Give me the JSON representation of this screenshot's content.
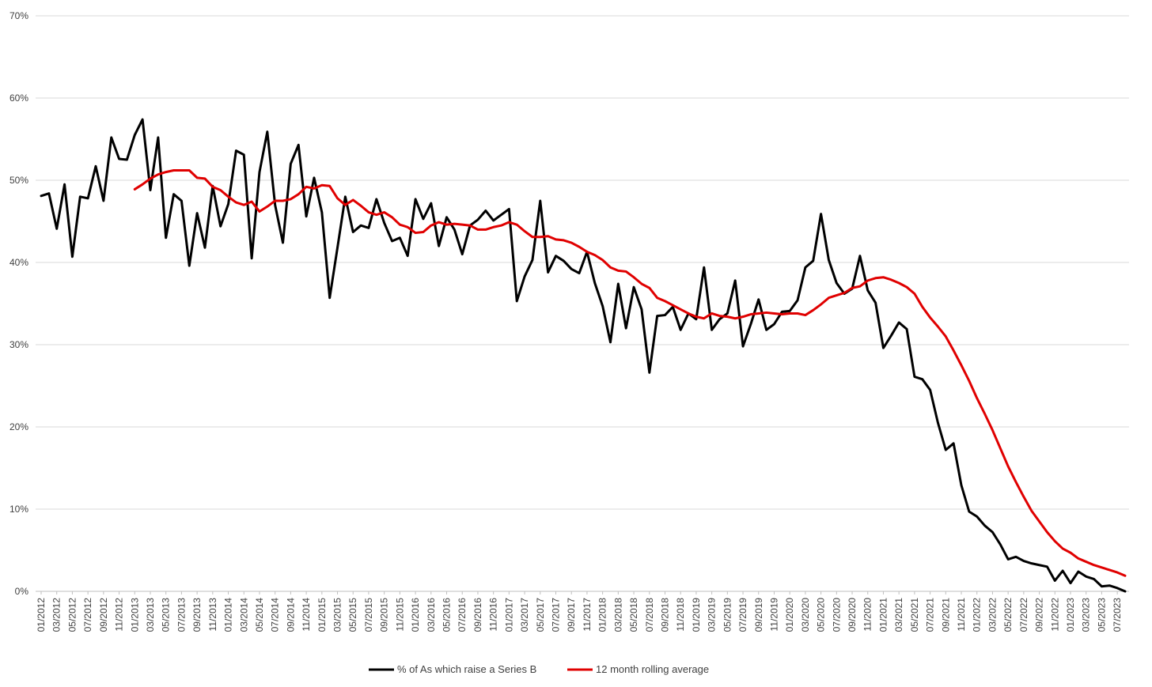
{
  "chart_data": {
    "type": "line",
    "xlabel": "",
    "ylabel": "",
    "ylim": [
      0,
      0.7
    ],
    "y_ticks": [
      "0%",
      "10%",
      "20%",
      "30%",
      "40%",
      "50%",
      "60%",
      "70%"
    ],
    "grid": "horizontal",
    "legend_position": "bottom",
    "x": [
      "01/2012",
      "02/2012",
      "03/2012",
      "04/2012",
      "05/2012",
      "06/2012",
      "07/2012",
      "08/2012",
      "09/2012",
      "10/2012",
      "11/2012",
      "12/2012",
      "01/2013",
      "02/2013",
      "03/2013",
      "04/2013",
      "05/2013",
      "06/2013",
      "07/2013",
      "08/2013",
      "09/2013",
      "10/2013",
      "11/2013",
      "12/2013",
      "01/2014",
      "02/2014",
      "03/2014",
      "04/2014",
      "05/2014",
      "06/2014",
      "07/2014",
      "08/2014",
      "09/2014",
      "10/2014",
      "11/2014",
      "12/2014",
      "01/2015",
      "02/2015",
      "03/2015",
      "04/2015",
      "05/2015",
      "06/2015",
      "07/2015",
      "08/2015",
      "09/2015",
      "10/2015",
      "11/2015",
      "12/2015",
      "01/2016",
      "02/2016",
      "03/2016",
      "04/2016",
      "05/2016",
      "06/2016",
      "07/2016",
      "08/2016",
      "09/2016",
      "10/2016",
      "11/2016",
      "12/2016",
      "01/2017",
      "02/2017",
      "03/2017",
      "04/2017",
      "05/2017",
      "06/2017",
      "07/2017",
      "08/2017",
      "09/2017",
      "10/2017",
      "11/2017",
      "12/2017",
      "01/2018",
      "02/2018",
      "03/2018",
      "04/2018",
      "05/2018",
      "06/2018",
      "07/2018",
      "08/2018",
      "09/2018",
      "10/2018",
      "11/2018",
      "12/2018",
      "01/2019",
      "02/2019",
      "03/2019",
      "04/2019",
      "05/2019",
      "06/2019",
      "07/2019",
      "08/2019",
      "09/2019",
      "10/2019",
      "11/2019",
      "12/2019",
      "01/2020",
      "02/2020",
      "03/2020",
      "04/2020",
      "05/2020",
      "06/2020",
      "07/2020",
      "08/2020",
      "09/2020",
      "10/2020",
      "11/2020",
      "12/2020",
      "01/2021",
      "02/2021",
      "03/2021",
      "04/2021",
      "05/2021",
      "06/2021",
      "07/2021",
      "08/2021",
      "09/2021",
      "10/2021",
      "11/2021",
      "12/2021",
      "01/2022",
      "02/2022",
      "03/2022",
      "04/2022",
      "05/2022",
      "06/2022",
      "07/2022",
      "08/2022",
      "09/2022",
      "10/2022",
      "11/2022",
      "12/2022",
      "01/2023",
      "02/2023",
      "03/2023",
      "04/2023",
      "05/2023",
      "06/2023",
      "07/2023",
      "08/2023"
    ],
    "x_tick_labels": [
      "01/2012",
      "03/2012",
      "05/2012",
      "07/2012",
      "09/2012",
      "11/2012",
      "01/2013",
      "03/2013",
      "05/2013",
      "07/2013",
      "09/2013",
      "11/2013",
      "01/2014",
      "03/2014",
      "05/2014",
      "07/2014",
      "09/2014",
      "11/2014",
      "01/2015",
      "03/2015",
      "05/2015",
      "07/2015",
      "09/2015",
      "11/2015",
      "01/2016",
      "03/2016",
      "05/2016",
      "07/2016",
      "09/2016",
      "11/2016",
      "01/2017",
      "03/2017",
      "05/2017",
      "07/2017",
      "09/2017",
      "11/2017",
      "01/2018",
      "03/2018",
      "05/2018",
      "07/2018",
      "09/2018",
      "11/2018",
      "01/2019",
      "03/2019",
      "05/2019",
      "07/2019",
      "09/2019",
      "11/2019",
      "01/2020",
      "03/2020",
      "05/2020",
      "07/2020",
      "09/2020",
      "11/2020",
      "01/2021",
      "03/2021",
      "05/2021",
      "07/2021",
      "09/2021",
      "11/2021",
      "01/2022",
      "03/2022",
      "05/2022",
      "07/2022",
      "09/2022",
      "11/2022",
      "01/2023",
      "03/2023",
      "05/2023",
      "07/2023"
    ],
    "series": [
      {
        "name": "% of As which raise a Series B",
        "color": "#000000",
        "values": [
          0.481,
          0.484,
          0.441,
          0.495,
          0.407,
          0.48,
          0.478,
          0.517,
          0.475,
          0.552,
          0.526,
          0.525,
          0.555,
          0.574,
          0.488,
          0.552,
          0.43,
          0.483,
          0.475,
          0.396,
          0.46,
          0.418,
          0.493,
          0.444,
          0.471,
          0.536,
          0.531,
          0.405,
          0.51,
          0.559,
          0.47,
          0.424,
          0.52,
          0.543,
          0.456,
          0.503,
          0.461,
          0.357,
          0.418,
          0.48,
          0.437,
          0.445,
          0.442,
          0.477,
          0.448,
          0.426,
          0.43,
          0.408,
          0.477,
          0.453,
          0.472,
          0.42,
          0.455,
          0.44,
          0.41,
          0.445,
          0.452,
          0.463,
          0.451,
          0.458,
          0.465,
          0.353,
          0.383,
          0.403,
          0.475,
          0.388,
          0.408,
          0.402,
          0.392,
          0.387,
          0.413,
          0.375,
          0.347,
          0.303,
          0.374,
          0.32,
          0.37,
          0.343,
          0.266,
          0.335,
          0.336,
          0.346,
          0.318,
          0.338,
          0.331,
          0.394,
          0.318,
          0.331,
          0.338,
          0.378,
          0.298,
          0.325,
          0.355,
          0.318,
          0.325,
          0.34,
          0.341,
          0.354,
          0.394,
          0.402,
          0.459,
          0.403,
          0.375,
          0.362,
          0.368,
          0.408,
          0.366,
          0.351,
          0.296,
          0.311,
          0.327,
          0.319,
          0.261,
          0.258,
          0.245,
          0.205,
          0.172,
          0.18,
          0.129,
          0.097,
          0.091,
          0.08,
          0.072,
          0.057,
          0.039,
          0.042,
          0.037,
          0.034,
          0.032,
          0.03,
          0.013,
          0.025,
          0.01,
          0.024,
          0.018,
          0.015,
          0.006,
          0.007,
          0.004,
          0.0
        ]
      },
      {
        "name": "12 month rolling average",
        "color": "#e00000",
        "values": [
          null,
          null,
          null,
          null,
          null,
          null,
          null,
          null,
          null,
          null,
          null,
          null,
          0.489,
          0.495,
          0.502,
          0.507,
          0.51,
          0.512,
          0.512,
          0.512,
          0.503,
          0.502,
          0.492,
          0.488,
          0.48,
          0.473,
          0.47,
          0.474,
          0.462,
          0.468,
          0.475,
          0.475,
          0.477,
          0.483,
          0.492,
          0.49,
          0.494,
          0.493,
          0.478,
          0.47,
          0.476,
          0.469,
          0.461,
          0.458,
          0.461,
          0.455,
          0.446,
          0.443,
          0.436,
          0.437,
          0.445,
          0.449,
          0.446,
          0.447,
          0.446,
          0.445,
          0.44,
          0.44,
          0.443,
          0.445,
          0.449,
          0.446,
          0.438,
          0.431,
          0.431,
          0.432,
          0.428,
          0.427,
          0.424,
          0.419,
          0.413,
          0.409,
          0.403,
          0.394,
          0.39,
          0.389,
          0.382,
          0.374,
          0.369,
          0.357,
          0.353,
          0.348,
          0.343,
          0.338,
          0.334,
          0.332,
          0.338,
          0.335,
          0.334,
          0.332,
          0.334,
          0.337,
          0.338,
          0.339,
          0.338,
          0.337,
          0.338,
          0.338,
          0.336,
          0.342,
          0.349,
          0.357,
          0.36,
          0.363,
          0.369,
          0.371,
          0.378,
          0.381,
          0.382,
          0.379,
          0.375,
          0.37,
          0.362,
          0.346,
          0.333,
          0.322,
          0.31,
          0.293,
          0.275,
          0.256,
          0.235,
          0.216,
          0.196,
          0.174,
          0.152,
          0.133,
          0.115,
          0.098,
          0.085,
          0.072,
          0.061,
          0.052,
          0.047,
          0.04,
          0.036,
          0.032,
          0.029,
          0.026,
          0.023,
          0.019
        ]
      }
    ]
  }
}
